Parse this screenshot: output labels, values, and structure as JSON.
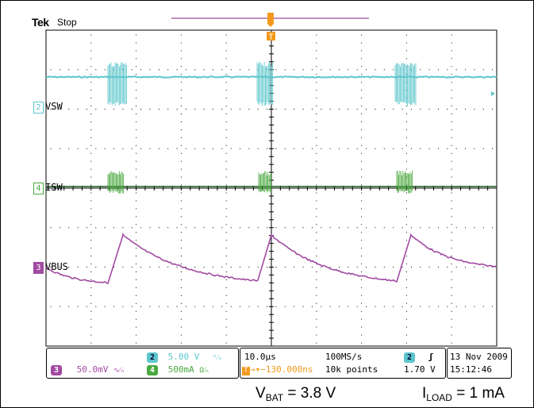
{
  "header": {
    "brand": "Tek",
    "status": "Stop",
    "trigger_marker": "T"
  },
  "channels": [
    {
      "id": "ch2",
      "number": "2",
      "label": "VSW",
      "color": "#5cc6cc"
    },
    {
      "id": "ch4",
      "number": "4",
      "label": "ISW",
      "color": "#49a83f"
    },
    {
      "id": "ch3",
      "number": "3",
      "label": "VBUS",
      "color": "#a24aa2"
    }
  ],
  "readout": {
    "ch2_scale": "5.00 V",
    "ch3_scale": "50.0mV",
    "ch4_scale": "500mA",
    "ch2_num": "2",
    "ch3_num": "3",
    "ch4_num": "4",
    "timebase": "10.0µs",
    "sample_rate": "100MS/s",
    "trigger_delay": "130.000ns",
    "record_length": "10k points",
    "trigger_channel": "2",
    "trigger_level": "1.70 V",
    "date": "13 Nov 2009",
    "time": "15:12:46"
  },
  "caption": {
    "vbat_main": "V",
    "vbat_sub": "BAT",
    "vbat_value": " = 3.8 V",
    "iload_main": "I",
    "iload_sub": "LOAD",
    "iload_value": " = 1 mA"
  },
  "colors": {
    "ch2": "#5cc6cc",
    "ch3": "#a24aa2",
    "ch4": "#49a83f",
    "trigger": "#f39a1d",
    "grid": "#000000"
  }
}
